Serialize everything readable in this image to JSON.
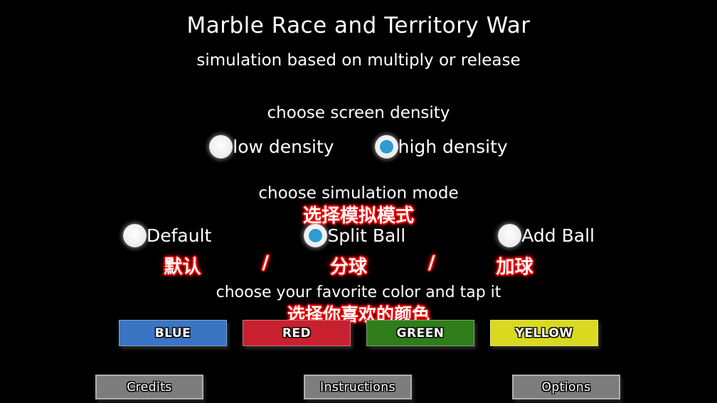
{
  "title": "Marble Race and Territory War",
  "subtitle": "simulation based on multiply or release",
  "density": {
    "heading": "choose screen density",
    "options": [
      {
        "label": "low density",
        "selected": false
      },
      {
        "label": "high density",
        "selected": true
      }
    ]
  },
  "mode": {
    "heading": "choose simulation mode",
    "heading_zh": "选择模拟模式",
    "zh_separator": "/",
    "options": [
      {
        "label": "Default",
        "label_zh": "默认",
        "selected": false
      },
      {
        "label": "Split Ball",
        "label_zh": "分球",
        "selected": true
      },
      {
        "label": "Add Ball",
        "label_zh": "加球",
        "selected": false
      }
    ]
  },
  "colors": {
    "heading": "choose your favorite color and tap it",
    "heading_zh": "选择你喜欢的颜色",
    "buttons": [
      {
        "label": "BLUE",
        "color": "#3A75C4"
      },
      {
        "label": "RED",
        "color": "#C9202F"
      },
      {
        "label": "GREEN",
        "color": "#2E7D1A"
      },
      {
        "label": "YELLOW",
        "color": "#D9DA1F"
      }
    ]
  },
  "footer": {
    "buttons": [
      "Credits",
      "Instructions",
      "Options"
    ]
  },
  "accent": {
    "radio_selected": "#2E9BD2",
    "annotation_red": "#FF0000"
  }
}
